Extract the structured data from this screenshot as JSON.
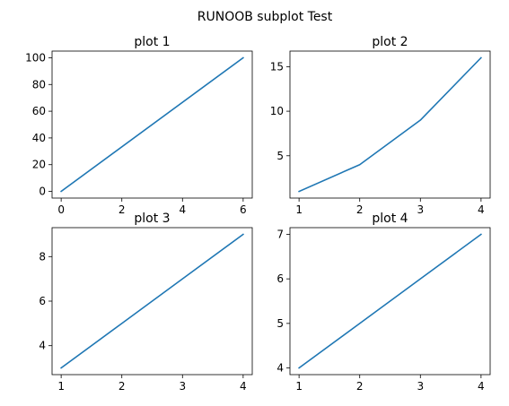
{
  "figure": {
    "suptitle": "RUNOOB subplot Test",
    "line_color": "#1f77b4",
    "background": "#ffffff"
  },
  "chart_data": [
    {
      "type": "line",
      "title": "plot 1",
      "xlabel": "",
      "ylabel": "",
      "x": [
        0,
        6
      ],
      "y": [
        0,
        100
      ],
      "xlim": [
        -0.3,
        6.3
      ],
      "ylim": [
        -5,
        105
      ],
      "xticks": [
        0,
        2,
        4,
        6
      ],
      "yticks": [
        0,
        20,
        40,
        60,
        80,
        100
      ],
      "grid": false
    },
    {
      "type": "line",
      "title": "plot 2",
      "xlabel": "",
      "ylabel": "",
      "x": [
        1,
        2,
        3,
        4
      ],
      "y": [
        1,
        4,
        9,
        16
      ],
      "xlim": [
        0.85,
        4.15
      ],
      "ylim": [
        0.25,
        16.75
      ],
      "xticks": [
        1,
        2,
        3,
        4
      ],
      "yticks": [
        5,
        10,
        15
      ],
      "grid": false
    },
    {
      "type": "line",
      "title": "plot 3",
      "xlabel": "",
      "ylabel": "",
      "x": [
        1,
        2,
        3,
        4
      ],
      "y": [
        3,
        5,
        7,
        9
      ],
      "xlim": [
        0.85,
        4.15
      ],
      "ylim": [
        2.7,
        9.3
      ],
      "xticks": [
        1,
        2,
        3,
        4
      ],
      "yticks": [
        4,
        6,
        8
      ],
      "grid": false
    },
    {
      "type": "line",
      "title": "plot 4",
      "xlabel": "",
      "ylabel": "",
      "x": [
        1,
        2,
        3,
        4
      ],
      "y": [
        4,
        5,
        6,
        7
      ],
      "xlim": [
        0.85,
        4.15
      ],
      "ylim": [
        3.85,
        7.15
      ],
      "xticks": [
        1,
        2,
        3,
        4
      ],
      "yticks": [
        4,
        5,
        6,
        7
      ],
      "grid": false
    }
  ]
}
